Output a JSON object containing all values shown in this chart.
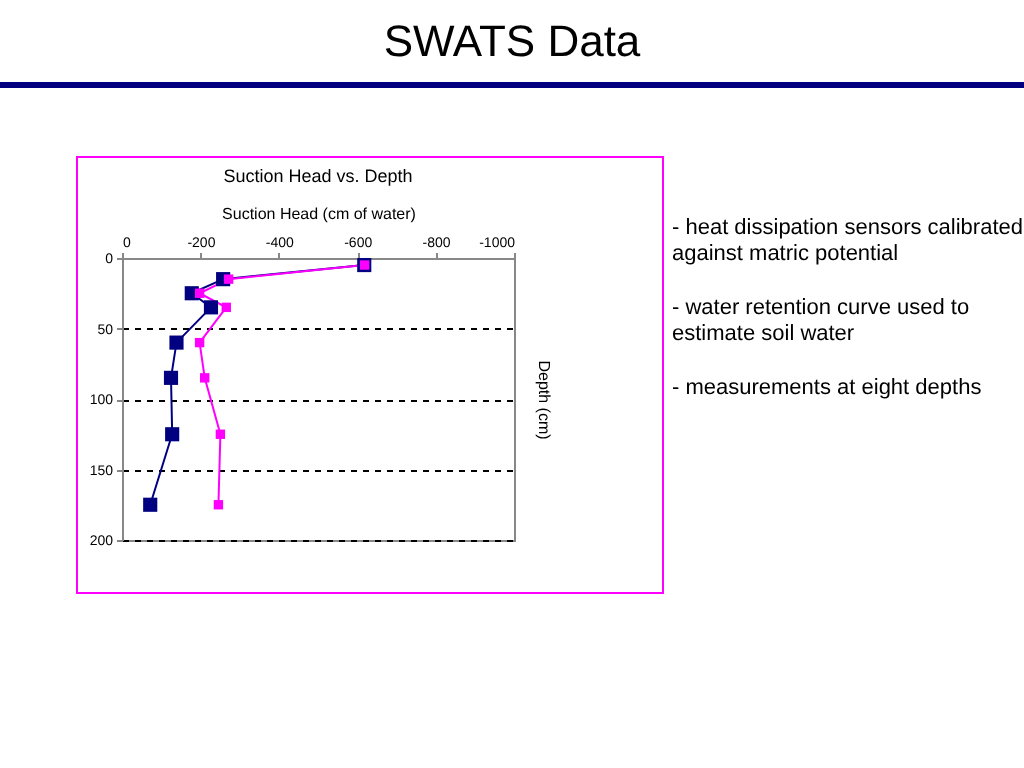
{
  "chart_data": {
    "type": "line",
    "title": "SWATS Data",
    "subtitle": "Suction Head vs. Depth",
    "xlabel": "Suction Head (cm of water)",
    "ylabel": "Depth (cm)",
    "xlim": [
      0,
      -1000
    ],
    "xticks": [
      0,
      -200,
      -400,
      -600,
      -800,
      -1000
    ],
    "ylim": [
      200,
      0
    ],
    "yticks": [
      0,
      50,
      100,
      150,
      200
    ],
    "grid": "y",
    "marker": "square",
    "line_style": "solid",
    "series": [
      {
        "color": "#000080",
        "x": [
          -618,
          -258,
          -178,
          -227,
          -139,
          -125,
          -128,
          -72
        ],
        "values": [
          5,
          15,
          25,
          35,
          60,
          85,
          125,
          175
        ]
      },
      {
        "color": "#ff00ff",
        "x": [
          -619,
          -272,
          -198,
          -266,
          -198,
          -211,
          -251,
          -246
        ],
        "values": [
          5,
          15,
          25,
          35,
          60,
          85,
          125,
          175
        ]
      }
    ],
    "annotations": [
      "- heat dissipation sensors calibrated against matric potential",
      "- water retention curve used to estimate soil water",
      "- measurements at eight depths"
    ]
  }
}
